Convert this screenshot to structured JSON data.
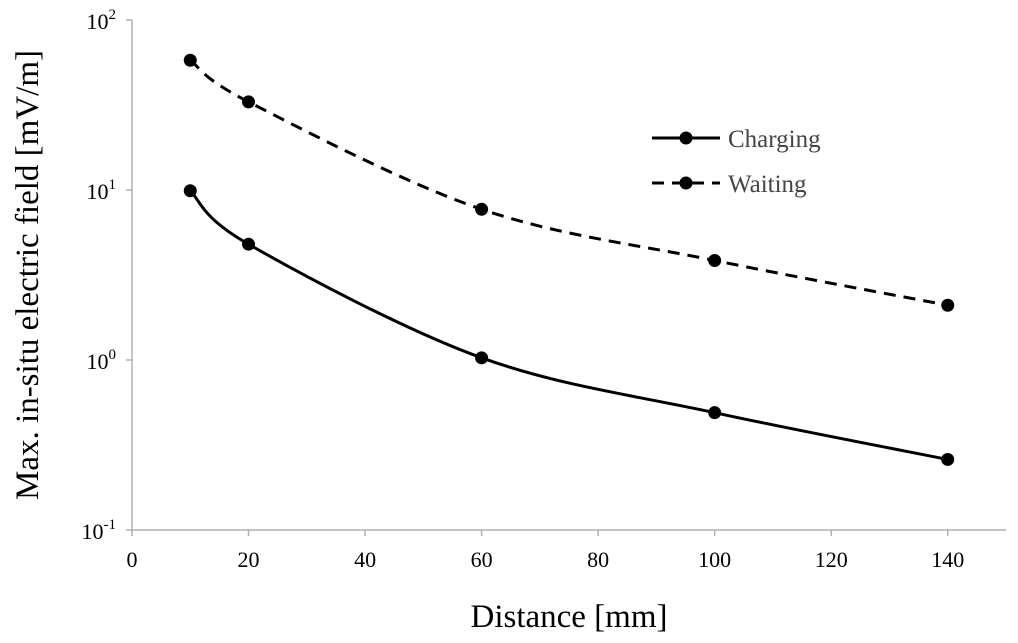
{
  "chart_data": {
    "type": "line",
    "xlabel": "Distance [mm]",
    "ylabel": "Max. in-situ electric field [mV/m]",
    "xlim": [
      0,
      150
    ],
    "ylim": [
      0.1,
      100
    ],
    "yscale": "log",
    "x_ticks": [
      "0",
      "20",
      "40",
      "60",
      "80",
      "100",
      "120",
      "140"
    ],
    "y_ticks": [
      {
        "base": "10",
        "exp": "-1"
      },
      {
        "base": "10",
        "exp": "0"
      },
      {
        "base": "10",
        "exp": "1"
      },
      {
        "base": "10",
        "exp": "2"
      }
    ],
    "grid": false,
    "legend": "upper-right",
    "series": [
      {
        "name": "Charging",
        "style": "solid",
        "color": "#000000",
        "x": [
          10,
          20,
          60,
          100,
          140
        ],
        "y": [
          9.9,
          4.8,
          1.03,
          0.49,
          0.26
        ]
      },
      {
        "name": "Waiting",
        "style": "dashed",
        "color": "#000000",
        "x": [
          10,
          20,
          60,
          100,
          140
        ],
        "y": [
          58,
          33,
          7.7,
          3.85,
          2.1
        ]
      }
    ]
  }
}
